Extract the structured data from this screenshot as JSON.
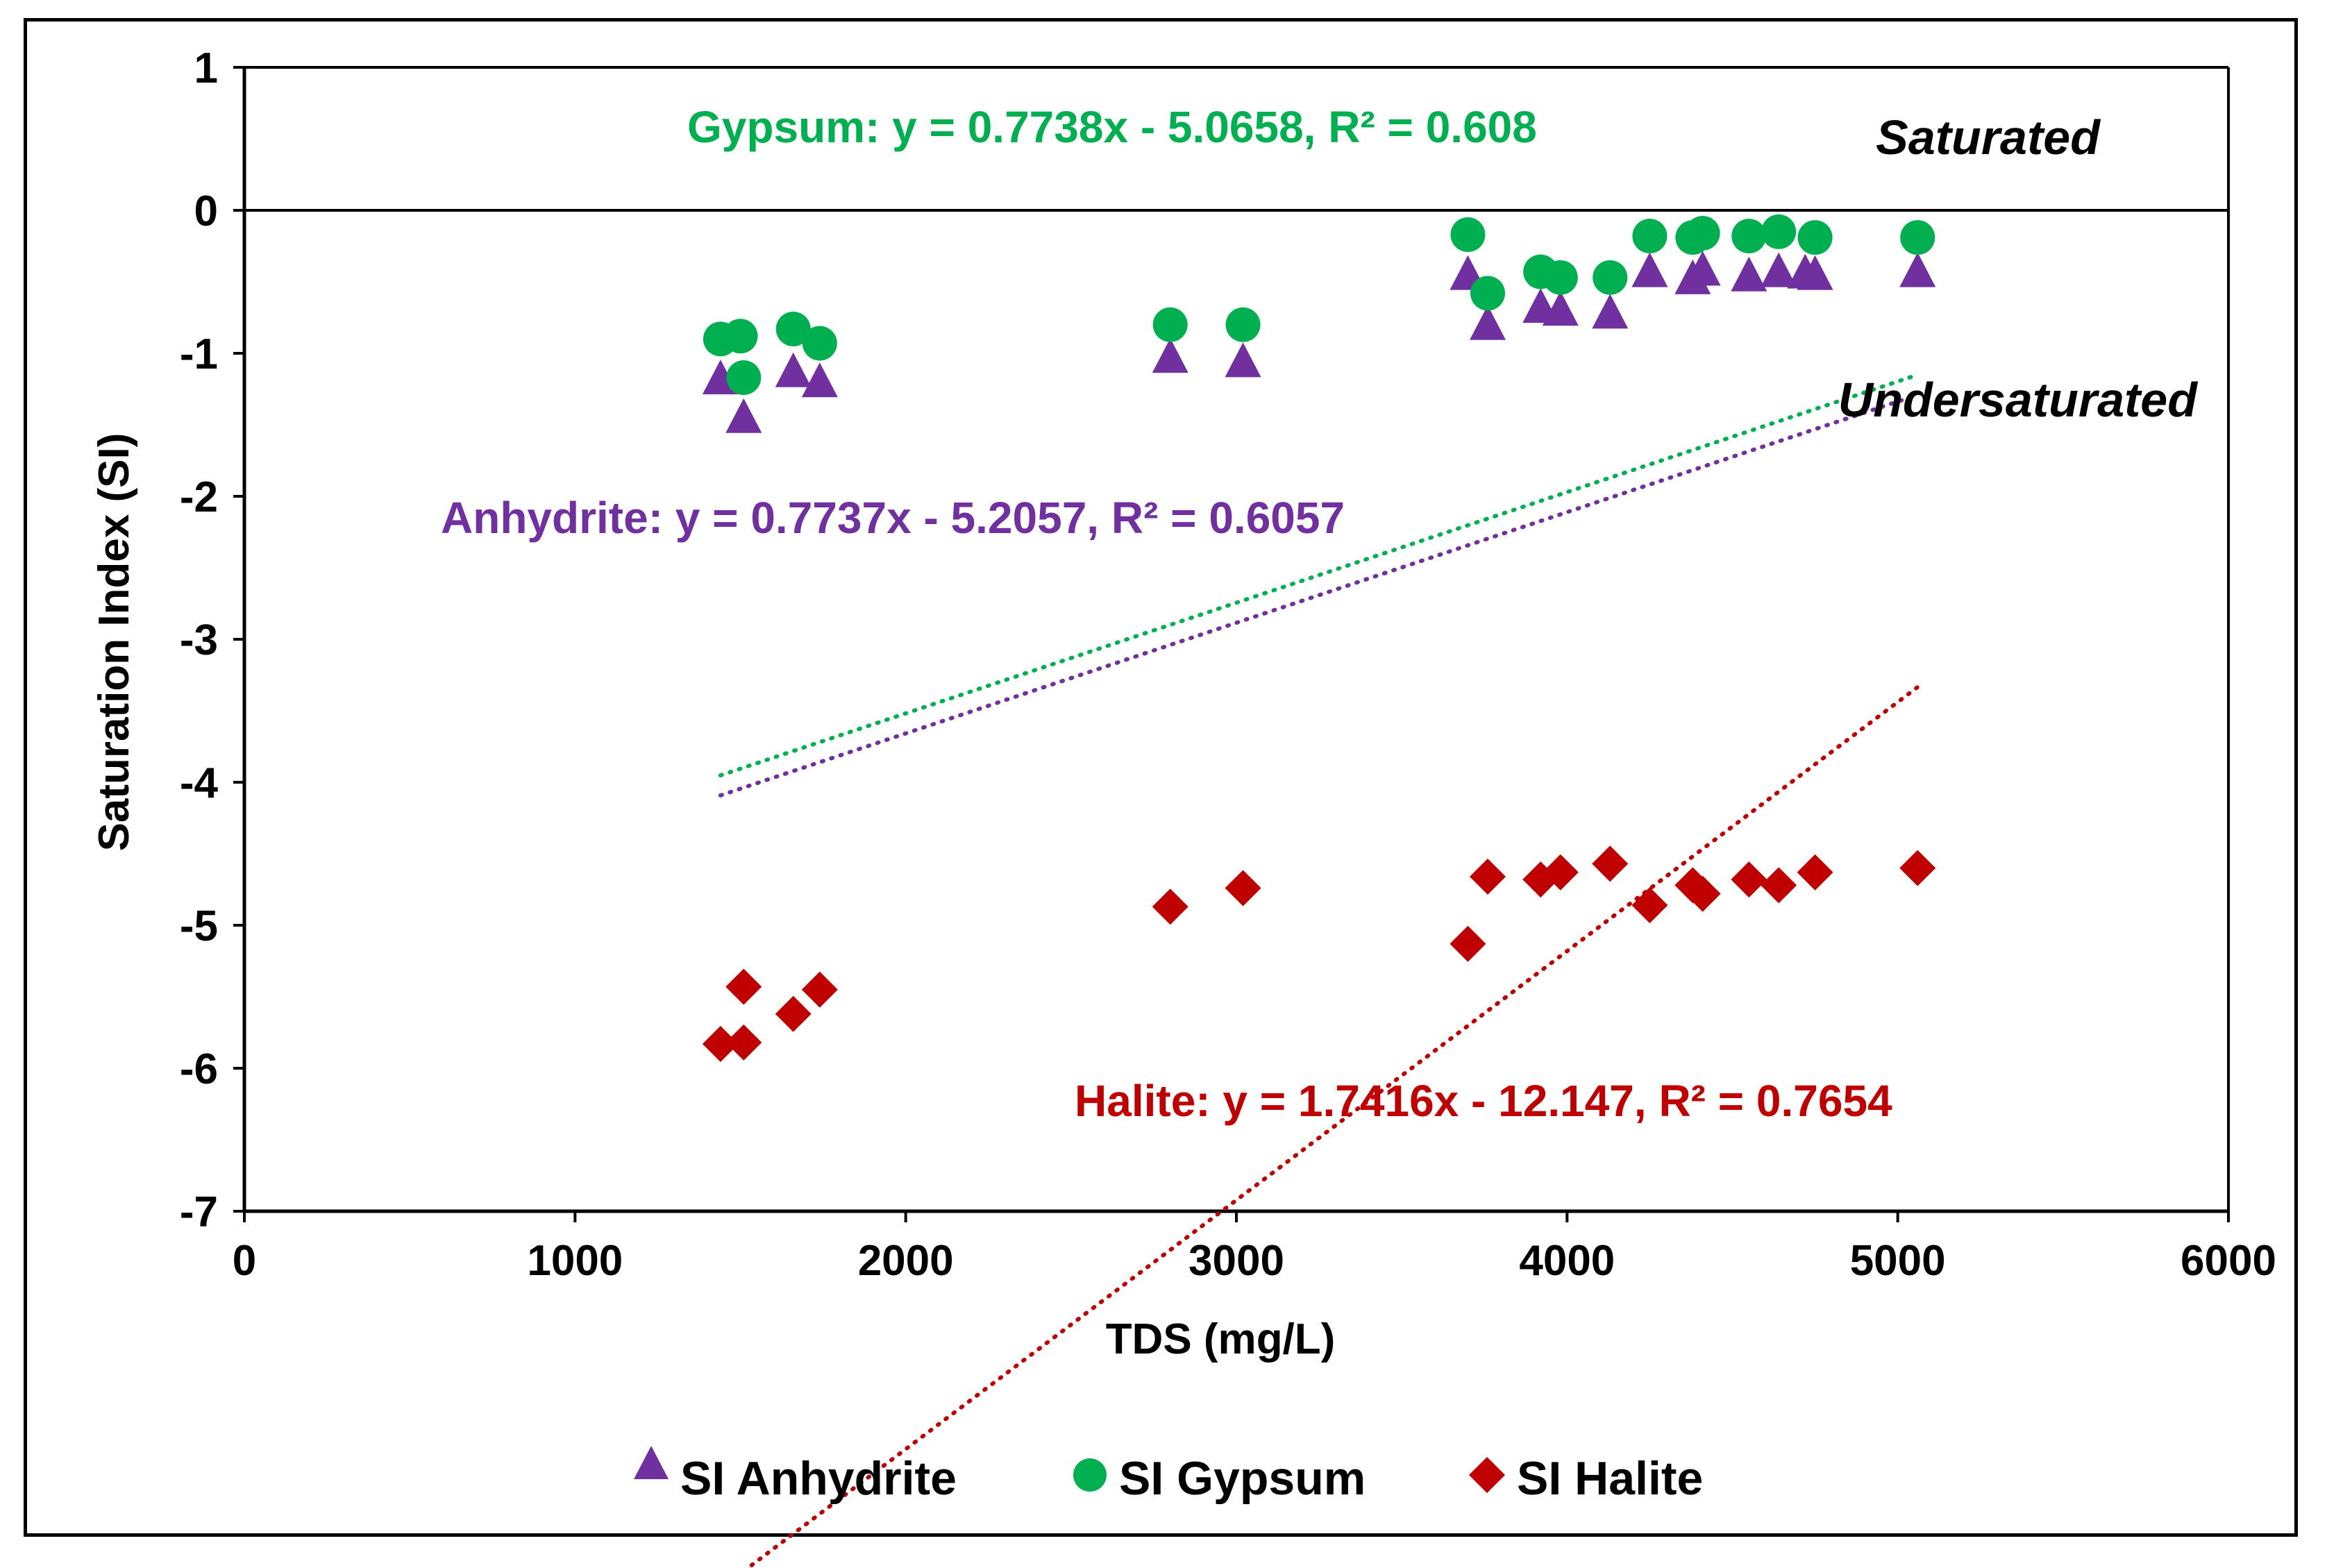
{
  "chart_data": {
    "type": "scatter",
    "xlabel": "TDS (mg/L)",
    "ylabel": "Saturation Index (SI)",
    "xlim": [
      0,
      6000
    ],
    "ylim": [
      -7,
      1
    ],
    "x_ticks": [
      0,
      1000,
      2000,
      3000,
      4000,
      5000,
      6000
    ],
    "y_ticks": [
      1,
      0,
      -1,
      -2,
      -3,
      -4,
      -5,
      -6,
      -7
    ],
    "grid": false,
    "legend_position": "bottom",
    "reference_line": {
      "y": 0
    },
    "annotations": {
      "saturated": "Saturated",
      "undersaturated": "Undersaturated"
    },
    "series": [
      {
        "name": "SI Anhydrite",
        "marker": "triangle",
        "color": "#7030A0",
        "points": [
          [
            1440,
            -1.18
          ],
          [
            1510,
            -1.45
          ],
          [
            1660,
            -1.13
          ],
          [
            1740,
            -1.2
          ],
          [
            2800,
            -1.03
          ],
          [
            3020,
            -1.06
          ],
          [
            3700,
            -0.45
          ],
          [
            3760,
            -0.8
          ],
          [
            3920,
            -0.68
          ],
          [
            3980,
            -0.7
          ],
          [
            4130,
            -0.72
          ],
          [
            4250,
            -0.43
          ],
          [
            4380,
            -0.48
          ],
          [
            4410,
            -0.42
          ],
          [
            4550,
            -0.46
          ],
          [
            4640,
            -0.43
          ],
          [
            4720,
            -0.44
          ],
          [
            4750,
            -0.45
          ],
          [
            5060,
            -0.43
          ]
        ],
        "trendline": {
          "slope": 0.7737,
          "intercept": -5.2057,
          "x_range": [
            1440,
            5060
          ],
          "label": "Anhydrite: y = 0.7737x - 5.2057, R² = 0.6057"
        }
      },
      {
        "name": "SI Gypsum",
        "marker": "circle",
        "color": "#00B050",
        "points": [
          [
            1440,
            -0.9
          ],
          [
            1500,
            -0.88
          ],
          [
            1510,
            -1.17
          ],
          [
            1660,
            -0.83
          ],
          [
            1740,
            -0.93
          ],
          [
            2800,
            -0.8
          ],
          [
            3020,
            -0.8
          ],
          [
            3700,
            -0.17
          ],
          [
            3760,
            -0.58
          ],
          [
            3920,
            -0.43
          ],
          [
            3980,
            -0.47
          ],
          [
            4130,
            -0.47
          ],
          [
            4250,
            -0.18
          ],
          [
            4380,
            -0.19
          ],
          [
            4410,
            -0.16
          ],
          [
            4550,
            -0.18
          ],
          [
            4640,
            -0.15
          ],
          [
            4750,
            -0.19
          ],
          [
            5060,
            -0.19
          ]
        ],
        "trendline": {
          "slope": 0.7738,
          "intercept": -5.0658,
          "x_range": [
            1440,
            5060
          ],
          "label": "Gypsum: y = 0.7738x - 5.0658, R² = 0.608"
        }
      },
      {
        "name": "SI Halite",
        "marker": "diamond",
        "color": "#C00000",
        "points": [
          [
            1440,
            -5.83
          ],
          [
            1510,
            -5.43
          ],
          [
            1510,
            -5.82
          ],
          [
            1660,
            -5.62
          ],
          [
            1740,
            -5.45
          ],
          [
            2800,
            -4.87
          ],
          [
            3020,
            -4.74
          ],
          [
            3700,
            -5.13
          ],
          [
            3760,
            -4.66
          ],
          [
            3920,
            -4.68
          ],
          [
            3980,
            -4.63
          ],
          [
            4130,
            -4.57
          ],
          [
            4250,
            -4.86
          ],
          [
            4380,
            -4.72
          ],
          [
            4410,
            -4.78
          ],
          [
            4550,
            -4.68
          ],
          [
            4640,
            -4.72
          ],
          [
            4750,
            -4.63
          ],
          [
            5060,
            -4.6
          ]
        ],
        "trendline": {
          "slope": 1.7416,
          "intercept": -12.147,
          "x_range": [
            1440,
            5060
          ],
          "label": "Halite: y = 1.7416x - 12.147, R² = 0.7654"
        }
      }
    ]
  }
}
